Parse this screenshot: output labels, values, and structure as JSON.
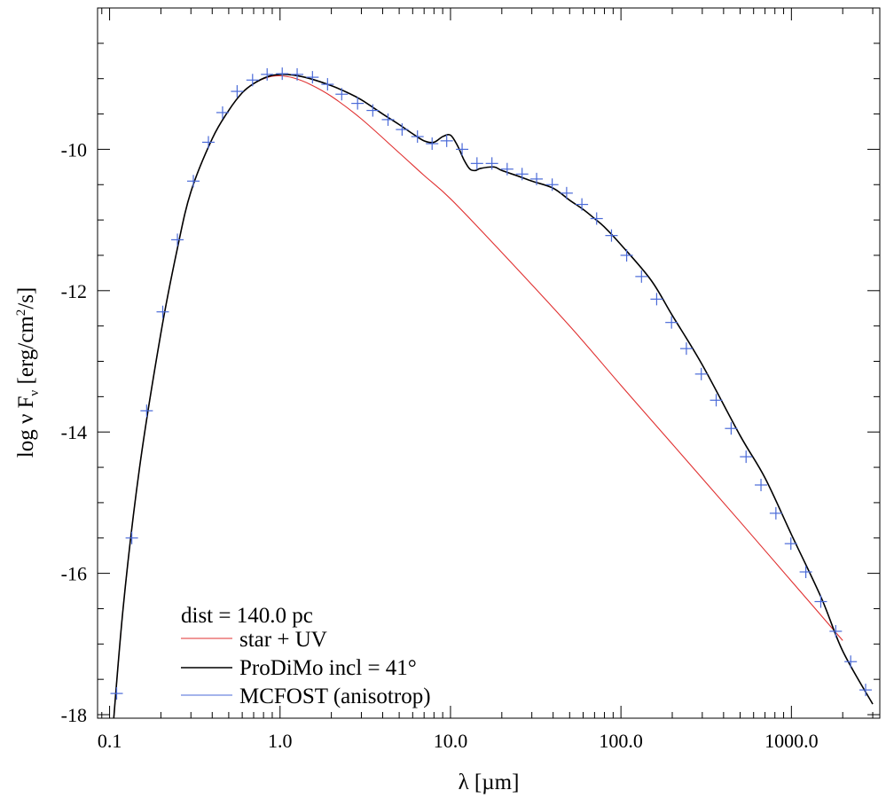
{
  "chart_data": {
    "type": "line",
    "xscale": "log",
    "xlim": [
      0.085,
      3300
    ],
    "ylim": [
      -18.05,
      -8.0
    ],
    "xticks": [
      {
        "value": 0.1,
        "label": "0.1"
      },
      {
        "value": 1,
        "label": "1.0"
      },
      {
        "value": 10,
        "label": "10.0"
      },
      {
        "value": 100,
        "label": "100.0"
      },
      {
        "value": 1000,
        "label": "1000.0"
      }
    ],
    "yticks": [
      {
        "value": -10,
        "label": "-10"
      },
      {
        "value": -12,
        "label": "-12"
      },
      {
        "value": -14,
        "label": "-14"
      },
      {
        "value": -16,
        "label": "-16"
      },
      {
        "value": -18,
        "label": "-18"
      }
    ],
    "xlabel": "λ [µm]",
    "ylabel": {
      "main": "log ν F",
      "sub": "ν",
      "units_a": " [erg/cm",
      "sup": "2",
      "units_b": "/s]"
    },
    "grid": false,
    "annotation": "dist = 140.0 pc",
    "legend_position": "bottom-left",
    "series": [
      {
        "name": "star + UV",
        "color": "#e03030",
        "style": "line",
        "x": [
          0.1,
          0.12,
          0.15,
          0.2,
          0.25,
          0.3,
          0.4,
          0.5,
          0.6,
          0.7,
          0.85,
          1.0,
          1.2,
          1.5,
          2,
          3,
          5,
          7,
          10,
          20,
          50,
          100,
          200,
          500,
          1000,
          2000
        ],
        "y": [
          -18.8,
          -16.5,
          -14.5,
          -12.6,
          -11.4,
          -10.6,
          -9.85,
          -9.45,
          -9.2,
          -9.07,
          -8.98,
          -8.96,
          -8.99,
          -9.08,
          -9.25,
          -9.57,
          -10.05,
          -10.37,
          -10.7,
          -11.46,
          -12.5,
          -13.34,
          -14.17,
          -15.27,
          -16.11,
          -16.95
        ]
      },
      {
        "name": "ProDiMo incl = 41°",
        "color": "#000000",
        "style": "line",
        "x": [
          0.1,
          0.12,
          0.15,
          0.2,
          0.25,
          0.3,
          0.4,
          0.5,
          0.6,
          0.7,
          0.85,
          1.0,
          1.2,
          1.5,
          2,
          2.5,
          3,
          4,
          5,
          6,
          7,
          8,
          9,
          10,
          11,
          12,
          13,
          14,
          15,
          18,
          20,
          25,
          30,
          40,
          50,
          60,
          70,
          80,
          100,
          150,
          200,
          300,
          500,
          700,
          1000,
          1500,
          2000,
          3000
        ],
        "y": [
          -18.8,
          -16.5,
          -14.5,
          -12.6,
          -11.4,
          -10.6,
          -9.85,
          -9.45,
          -9.2,
          -9.07,
          -8.97,
          -8.94,
          -8.95,
          -9.0,
          -9.1,
          -9.2,
          -9.3,
          -9.5,
          -9.65,
          -9.78,
          -9.88,
          -9.9,
          -9.82,
          -9.8,
          -9.95,
          -10.15,
          -10.28,
          -10.3,
          -10.27,
          -10.25,
          -10.3,
          -10.38,
          -10.45,
          -10.55,
          -10.72,
          -10.85,
          -10.98,
          -11.1,
          -11.35,
          -11.85,
          -12.35,
          -13.05,
          -14.05,
          -14.65,
          -15.45,
          -16.35,
          -17.1,
          -17.85
        ]
      },
      {
        "name": "MCFOST (anisotrop)",
        "color": "#4a6ad8",
        "style": "markers",
        "x": [
          0.11,
          0.135,
          0.165,
          0.205,
          0.25,
          0.31,
          0.38,
          0.46,
          0.56,
          0.69,
          0.84,
          1.03,
          1.26,
          1.55,
          1.9,
          2.3,
          2.85,
          3.5,
          4.3,
          5.2,
          6.4,
          7.8,
          9.5,
          11.7,
          14.3,
          17.5,
          21.5,
          26.3,
          32,
          39.5,
          48,
          59,
          72,
          88,
          108,
          132,
          162,
          198,
          242,
          296,
          362,
          443,
          542,
          663,
          811,
          993,
          1215,
          1487,
          1820,
          2227,
          2725
        ],
        "y": [
          -17.7,
          -15.5,
          -13.7,
          -12.3,
          -11.28,
          -10.45,
          -9.9,
          -9.48,
          -9.18,
          -9.02,
          -8.94,
          -8.93,
          -8.94,
          -8.98,
          -9.08,
          -9.22,
          -9.35,
          -9.45,
          -9.58,
          -9.72,
          -9.82,
          -9.92,
          -9.88,
          -10.0,
          -10.2,
          -10.2,
          -10.28,
          -10.35,
          -10.42,
          -10.5,
          -10.62,
          -10.78,
          -10.98,
          -11.22,
          -11.5,
          -11.8,
          -12.12,
          -12.45,
          -12.82,
          -13.18,
          -13.55,
          -13.95,
          -14.35,
          -14.75,
          -15.15,
          -15.58,
          -15.98,
          -16.4,
          -16.82,
          -17.25,
          -17.65
        ]
      }
    ]
  }
}
